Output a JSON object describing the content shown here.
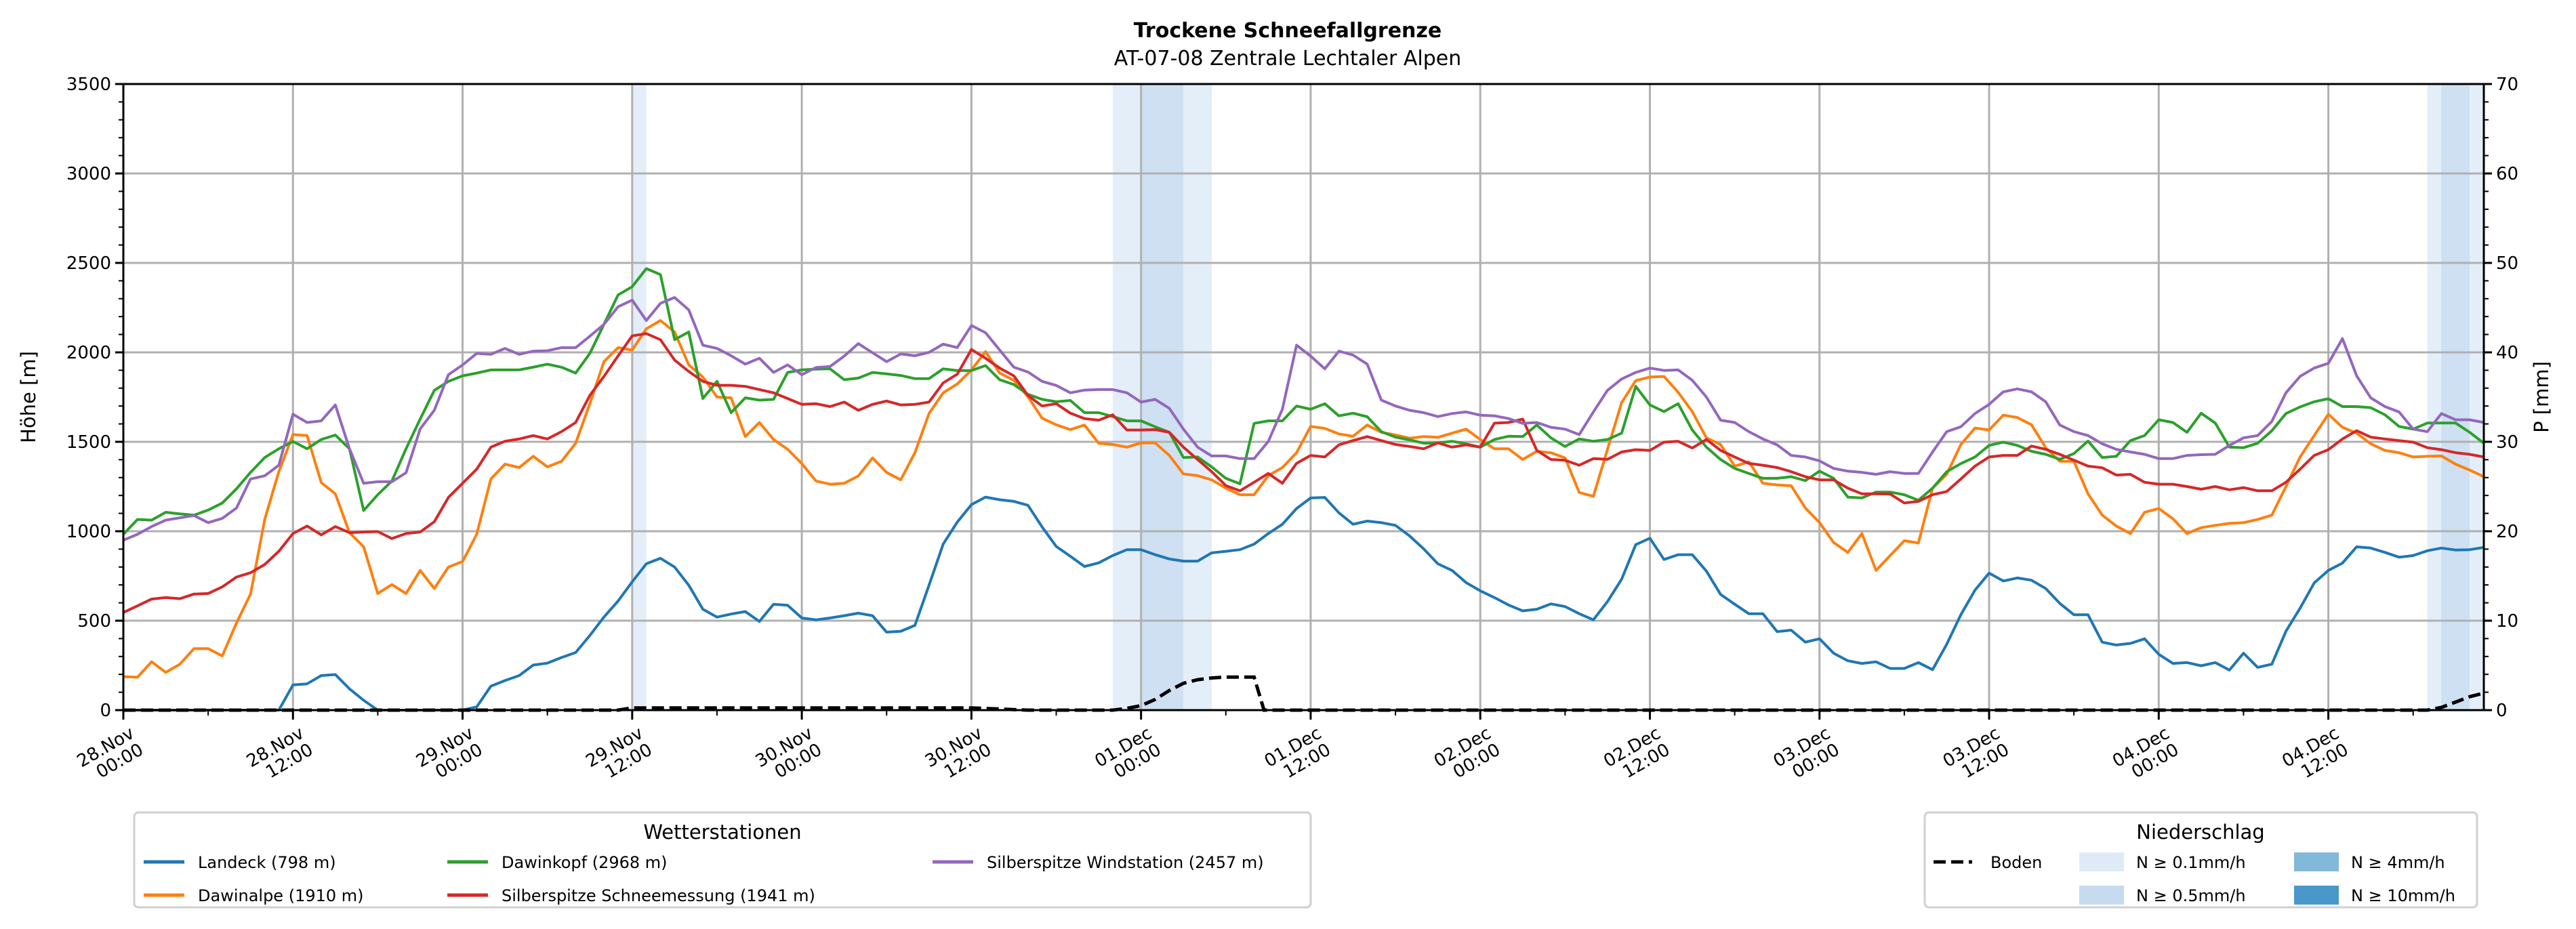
{
  "chart_data": {
    "type": "line",
    "title": "Trockene Schneefallgrenze",
    "subtitle": "AT-07-08 Zentrale Lechtaler Alpen",
    "ylabel": "Höhe [m]",
    "ylabel_right": "P [mm]",
    "ylim": [
      0,
      3500
    ],
    "ylim_right": [
      0,
      70
    ],
    "yticks": [
      "0",
      "500",
      "1000",
      "1500",
      "2000",
      "2500",
      "3000",
      "3500"
    ],
    "yticks_right": [
      "0",
      "10",
      "20",
      "30",
      "40",
      "50",
      "60",
      "70"
    ],
    "x_unit": "hours since 28.Nov 00:00 (hourly samples)",
    "xlim": [
      0,
      167
    ],
    "xticks": [
      {
        "date": "28.Nov",
        "time": "00:00"
      },
      {
        "date": "28.Nov",
        "time": "12:00"
      },
      {
        "date": "29.Nov",
        "time": "00:00"
      },
      {
        "date": "29.Nov",
        "time": "12:00"
      },
      {
        "date": "30.Nov",
        "time": "00:00"
      },
      {
        "date": "30.Nov",
        "time": "12:00"
      },
      {
        "date": "01.Dec",
        "time": "00:00"
      },
      {
        "date": "01.Dec",
        "time": "12:00"
      },
      {
        "date": "02.Dec",
        "time": "00:00"
      },
      {
        "date": "02.Dec",
        "time": "12:00"
      },
      {
        "date": "03.Dec",
        "time": "00:00"
      },
      {
        "date": "03.Dec",
        "time": "12:00"
      },
      {
        "date": "04.Dec",
        "time": "00:00"
      },
      {
        "date": "04.Dec",
        "time": "12:00"
      }
    ],
    "grid": true,
    "series": [
      {
        "name": "Landeck (798 m)",
        "color": "#1f77b4",
        "values": [
          0,
          0,
          0,
          0,
          0,
          0,
          0,
          0,
          0,
          0,
          0,
          0,
          141,
          147,
          193,
          199,
          119,
          55,
          0,
          0,
          0,
          0,
          0,
          0,
          0,
          18,
          134,
          165,
          193,
          252,
          263,
          294,
          322,
          417,
          520,
          610,
          717,
          818,
          849,
          800,
          698,
          564,
          520,
          537,
          551,
          496,
          592,
          586,
          515,
          505,
          515,
          528,
          542,
          528,
          436,
          441,
          474,
          698,
          928,
          1051,
          1149,
          1191,
          1176,
          1167,
          1145,
          1024,
          915,
          860,
          803,
          823,
          864,
          897,
          897,
          869,
          845,
          833,
          833,
          879,
          888,
          897,
          928,
          987,
          1039,
          1127,
          1186,
          1189,
          1103,
          1039,
          1057,
          1048,
          1033,
          974,
          901,
          818,
          781,
          713,
          667,
          629,
          588,
          555,
          564,
          594,
          579,
          539,
          505,
          607,
          732,
          925,
          961,
          842,
          869,
          869,
          777,
          647,
          592,
          539,
          539,
          439,
          447,
          380,
          399,
          318,
          276,
          261,
          270,
          233,
          233,
          266,
          226,
          368,
          533,
          671,
          766,
          722,
          739,
          726,
          680,
          597,
          533,
          533,
          380,
          364,
          373,
          399,
          312,
          261,
          266,
          248,
          266,
          224,
          318,
          239,
          257,
          441,
          570,
          711,
          781,
          822,
          913,
          906,
          882,
          855,
          864,
          891,
          906,
          895,
          897,
          910
        ]
      },
      {
        "name": "Dawinalpe (1910 m)",
        "color": "#ff7f0e",
        "values": [
          187,
          184,
          270,
          211,
          257,
          344,
          344,
          303,
          487,
          649,
          1066,
          1333,
          1540,
          1535,
          1272,
          1209,
          992,
          913,
          652,
          702,
          652,
          781,
          680,
          800,
          831,
          983,
          1292,
          1375,
          1356,
          1419,
          1360,
          1391,
          1492,
          1713,
          1948,
          2026,
          2013,
          2132,
          2178,
          2114,
          1930,
          1862,
          1750,
          1746,
          1529,
          1608,
          1513,
          1458,
          1378,
          1281,
          1263,
          1268,
          1309,
          1410,
          1329,
          1287,
          1439,
          1658,
          1774,
          1823,
          1902,
          2004,
          1884,
          1844,
          1752,
          1632,
          1595,
          1568,
          1594,
          1492,
          1485,
          1470,
          1494,
          1494,
          1424,
          1320,
          1311,
          1287,
          1241,
          1204,
          1204,
          1311,
          1356,
          1439,
          1586,
          1575,
          1544,
          1531,
          1594,
          1553,
          1538,
          1520,
          1529,
          1525,
          1548,
          1571,
          1513,
          1461,
          1461,
          1401,
          1447,
          1439,
          1410,
          1217,
          1195,
          1458,
          1719,
          1842,
          1862,
          1865,
          1777,
          1669,
          1522,
          1485,
          1364,
          1388,
          1268,
          1259,
          1254,
          1130,
          1048,
          937,
          882,
          987,
          781,
          864,
          947,
          934,
          1241,
          1318,
          1485,
          1577,
          1566,
          1649,
          1636,
          1595,
          1467,
          1391,
          1391,
          1209,
          1090,
          1029,
          987,
          1106,
          1127,
          1070,
          987,
          1020,
          1033,
          1044,
          1048,
          1066,
          1090,
          1250,
          1415,
          1535,
          1654,
          1581,
          1548,
          1489,
          1452,
          1439,
          1415,
          1419,
          1421,
          1375,
          1342,
          1305
        ]
      },
      {
        "name": "Dawinkopf (2968 m)",
        "color": "#2ca02c",
        "values": [
          983,
          1066,
          1062,
          1106,
          1097,
          1090,
          1118,
          1158,
          1237,
          1329,
          1412,
          1461,
          1502,
          1461,
          1513,
          1538,
          1461,
          1116,
          1204,
          1281,
          1461,
          1627,
          1787,
          1838,
          1869,
          1884,
          1902,
          1902,
          1902,
          1917,
          1934,
          1917,
          1884,
          1994,
          2156,
          2321,
          2367,
          2468,
          2435,
          2071,
          2114,
          1742,
          1838,
          1663,
          1746,
          1733,
          1737,
          1888,
          1902,
          1906,
          1908,
          1847,
          1856,
          1888,
          1880,
          1871,
          1853,
          1853,
          1908,
          1898,
          1898,
          1926,
          1847,
          1820,
          1765,
          1737,
          1724,
          1731,
          1663,
          1663,
          1641,
          1617,
          1617,
          1584,
          1553,
          1412,
          1415,
          1360,
          1296,
          1265,
          1603,
          1617,
          1617,
          1700,
          1682,
          1713,
          1645,
          1660,
          1640,
          1557,
          1526,
          1511,
          1492,
          1494,
          1503,
          1489,
          1470,
          1513,
          1531,
          1529,
          1594,
          1522,
          1474,
          1516,
          1503,
          1513,
          1548,
          1810,
          1706,
          1669,
          1713,
          1566,
          1470,
          1401,
          1351,
          1323,
          1296,
          1296,
          1305,
          1283,
          1336,
          1296,
          1191,
          1186,
          1219,
          1219,
          1204,
          1173,
          1241,
          1333,
          1378,
          1415,
          1480,
          1498,
          1480,
          1447,
          1430,
          1402,
          1434,
          1504,
          1412,
          1419,
          1507,
          1535,
          1623,
          1608,
          1553,
          1660,
          1605,
          1470,
          1467,
          1492,
          1562,
          1658,
          1695,
          1724,
          1741,
          1697,
          1697,
          1691,
          1651,
          1586,
          1571,
          1605,
          1605,
          1605,
          1553,
          1492
        ]
      },
      {
        "name": "Silberspitze Schneemessung (1941 m)",
        "color": "#d62728",
        "values": [
          546,
          583,
          621,
          629,
          623,
          649,
          652,
          689,
          744,
          768,
          814,
          888,
          987,
          1029,
          980,
          1026,
          992,
          996,
          998,
          959,
          987,
          996,
          1053,
          1189,
          1268,
          1347,
          1470,
          1503,
          1516,
          1535,
          1516,
          1557,
          1608,
          1759,
          1865,
          1980,
          2092,
          2105,
          2071,
          1957,
          1893,
          1838,
          1816,
          1816,
          1810,
          1792,
          1774,
          1742,
          1709,
          1713,
          1697,
          1722,
          1676,
          1709,
          1728,
          1706,
          1709,
          1722,
          1829,
          1878,
          2016,
          1967,
          1912,
          1869,
          1759,
          1700,
          1713,
          1660,
          1630,
          1621,
          1651,
          1566,
          1566,
          1568,
          1553,
          1470,
          1401,
          1333,
          1255,
          1226,
          1274,
          1323,
          1268,
          1379,
          1424,
          1415,
          1483,
          1507,
          1529,
          1507,
          1485,
          1474,
          1461,
          1494,
          1470,
          1483,
          1470,
          1604,
          1608,
          1627,
          1452,
          1401,
          1397,
          1369,
          1406,
          1402,
          1443,
          1456,
          1452,
          1498,
          1503,
          1465,
          1513,
          1452,
          1415,
          1379,
          1369,
          1356,
          1333,
          1305,
          1287,
          1287,
          1241,
          1209,
          1209,
          1208,
          1158,
          1167,
          1204,
          1222,
          1292,
          1364,
          1415,
          1424,
          1424,
          1476,
          1458,
          1430,
          1397,
          1364,
          1355,
          1314,
          1318,
          1274,
          1263,
          1263,
          1250,
          1235,
          1250,
          1232,
          1244,
          1226,
          1226,
          1274,
          1347,
          1424,
          1456,
          1516,
          1562,
          1526,
          1516,
          1507,
          1498,
          1467,
          1456,
          1439,
          1430,
          1415
        ]
      },
      {
        "name": "Silberspitze Windstation (2457 m)",
        "color": "#9467bd",
        "values": [
          950,
          983,
          1026,
          1062,
          1075,
          1088,
          1048,
          1072,
          1130,
          1292,
          1310,
          1369,
          1654,
          1608,
          1617,
          1706,
          1461,
          1268,
          1277,
          1277,
          1327,
          1572,
          1676,
          1875,
          1930,
          1994,
          1989,
          2022,
          1989,
          2007,
          2009,
          2026,
          2026,
          2090,
          2156,
          2255,
          2292,
          2178,
          2274,
          2307,
          2237,
          2040,
          2022,
          1981,
          1934,
          1967,
          1888,
          1930,
          1875,
          1915,
          1921,
          1979,
          2049,
          1998,
          1948,
          1991,
          1981,
          2000,
          2046,
          2027,
          2150,
          2110,
          2013,
          1917,
          1890,
          1838,
          1815,
          1774,
          1789,
          1792,
          1792,
          1774,
          1722,
          1737,
          1687,
          1571,
          1470,
          1421,
          1421,
          1406,
          1406,
          1502,
          1682,
          2040,
          1979,
          1908,
          2007,
          1985,
          1934,
          1733,
          1700,
          1676,
          1663,
          1641,
          1658,
          1667,
          1649,
          1645,
          1630,
          1603,
          1608,
          1581,
          1571,
          1540,
          1667,
          1788,
          1851,
          1888,
          1912,
          1899,
          1902,
          1844,
          1750,
          1621,
          1608,
          1557,
          1516,
          1483,
          1424,
          1415,
          1393,
          1351,
          1336,
          1329,
          1318,
          1333,
          1323,
          1323,
          1443,
          1557,
          1584,
          1658,
          1709,
          1779,
          1796,
          1779,
          1724,
          1594,
          1557,
          1535,
          1489,
          1458,
          1443,
          1430,
          1406,
          1406,
          1424,
          1428,
          1430,
          1480,
          1522,
          1535,
          1614,
          1774,
          1866,
          1912,
          1939,
          2077,
          1869,
          1746,
          1697,
          1667,
          1571,
          1557,
          1658,
          1623,
          1623,
          1608
        ]
      }
    ],
    "precip_boden": {
      "name": "Boden",
      "axis": "right",
      "points": [
        [
          0,
          0
        ],
        [
          35,
          0
        ],
        [
          36,
          0.25
        ],
        [
          60,
          0.25
        ],
        [
          64,
          0
        ],
        [
          70,
          0
        ],
        [
          71,
          0.2
        ],
        [
          72,
          0.5
        ],
        [
          73,
          1.2
        ],
        [
          74,
          2.2
        ],
        [
          75,
          3.0
        ],
        [
          76,
          3.4
        ],
        [
          77,
          3.6
        ],
        [
          78,
          3.7
        ],
        [
          79,
          3.7
        ],
        [
          80,
          3.7
        ],
        [
          80.7,
          0
        ],
        [
          163,
          0
        ],
        [
          164,
          0.3
        ],
        [
          165,
          0.9
        ],
        [
          166,
          1.5
        ],
        [
          167,
          1.9
        ]
      ]
    },
    "precip_bands": [
      {
        "start": 36,
        "end": 37,
        "level": "N ≥ 0.1mm/h"
      },
      {
        "start": 70,
        "end": 72,
        "level": "N ≥ 0.1mm/h"
      },
      {
        "start": 72,
        "end": 75,
        "level": "N ≥ 0.5mm/h"
      },
      {
        "start": 75,
        "end": 77,
        "level": "N ≥ 0.1mm/h"
      },
      {
        "start": 163,
        "end": 164,
        "level": "N ≥ 0.1mm/h"
      },
      {
        "start": 164,
        "end": 166,
        "level": "N ≥ 0.5mm/h"
      },
      {
        "start": 166,
        "end": 167,
        "level": "N ≥ 0.1mm/h"
      }
    ],
    "legend_stations": {
      "title": "Wetterstationen",
      "placement": "bottom-left"
    },
    "legend_precip": {
      "title": "Niederschlag",
      "placement": "bottom-right",
      "boden_label": "Boden",
      "levels": [
        {
          "label": "N ≥ 0.1mm/h",
          "color": "#deebf7"
        },
        {
          "label": "N ≥ 0.5mm/h",
          "color": "#c6dbef"
        },
        {
          "label": "N ≥ 4mm/h",
          "color": "#82b8da"
        },
        {
          "label": "N ≥ 10mm/h",
          "color": "#4a98c9"
        }
      ]
    }
  }
}
